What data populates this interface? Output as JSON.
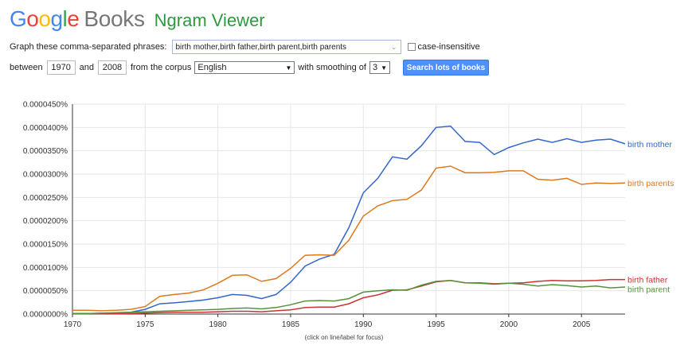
{
  "logo": {
    "letters": [
      {
        "ch": "G",
        "color": "#4285F4"
      },
      {
        "ch": "o",
        "color": "#EA4335"
      },
      {
        "ch": "o",
        "color": "#FBBC05"
      },
      {
        "ch": "g",
        "color": "#4285F4"
      },
      {
        "ch": "l",
        "color": "#34A853"
      },
      {
        "ch": "e",
        "color": "#EA4335"
      }
    ],
    "books": "Books",
    "product": "Ngram Viewer"
  },
  "form": {
    "phrases_label": "Graph these comma-separated phrases:",
    "phrases_value": "birth mother,birth father,birth parent,birth parents",
    "case_label": "case-insensitive",
    "between_label": "between",
    "start_year": "1970",
    "and_label": "and",
    "end_year": "2008",
    "corpus_label": "from the corpus",
    "corpus_value": "English",
    "smoothing_label": "with smoothing of",
    "smoothing_value": "3",
    "search_button": "Search lots of books"
  },
  "chart_data": {
    "type": "line",
    "xlim": [
      1970,
      2008
    ],
    "ylim": [
      0,
      4.5e-07
    ],
    "x_ticks": [
      1970,
      1975,
      1980,
      1985,
      1990,
      1995,
      2000,
      2005
    ],
    "y_ticks": [
      0,
      5e-08,
      1e-07,
      1.5e-07,
      2e-07,
      2.5e-07,
      3e-07,
      3.5e-07,
      4e-07,
      4.5e-07
    ],
    "y_tick_labels": [
      "0.0000000%",
      "0.0000050%",
      "0.0000100%",
      "0.0000150%",
      "0.0000200%",
      "0.0000250%",
      "0.0000300%",
      "0.0000350%",
      "0.0000400%",
      "0.0000450%"
    ],
    "x": [
      1970,
      1971,
      1972,
      1973,
      1974,
      1975,
      1976,
      1977,
      1978,
      1979,
      1980,
      1981,
      1982,
      1983,
      1984,
      1985,
      1986,
      1987,
      1988,
      1989,
      1990,
      1991,
      1992,
      1993,
      1994,
      1995,
      1996,
      1997,
      1998,
      1999,
      2000,
      2001,
      2002,
      2003,
      2004,
      2005,
      2006,
      2007,
      2008
    ],
    "series": [
      {
        "name": "birth mother",
        "color": "#3366cc",
        "values": [
          1e-09,
          1e-09,
          1e-09,
          2e-09,
          4e-09,
          1e-08,
          2.2e-08,
          2.4e-08,
          2.7e-08,
          3e-08,
          3.5e-08,
          4.2e-08,
          4e-08,
          3.3e-08,
          4.2e-08,
          6.8e-08,
          1.03e-07,
          1.18e-07,
          1.28e-07,
          1.85e-07,
          2.6e-07,
          2.91e-07,
          3.37e-07,
          3.32e-07,
          3.61e-07,
          4e-07,
          4.03e-07,
          3.7e-07,
          3.68e-07,
          3.42e-07,
          3.57e-07,
          3.67e-07,
          3.75e-07,
          3.68e-07,
          3.76e-07,
          3.68e-07,
          3.73e-07,
          3.75e-07,
          3.65e-07
        ]
      },
      {
        "name": "birth parents",
        "color": "#dc7a1e",
        "values": [
          8e-09,
          8e-09,
          7e-09,
          8e-09,
          1e-08,
          1.6e-08,
          3.8e-08,
          4.2e-08,
          4.5e-08,
          5.2e-08,
          6.6e-08,
          8.3e-08,
          8.4e-08,
          7e-08,
          7.6e-08,
          9.8e-08,
          1.26e-07,
          1.27e-07,
          1.26e-07,
          1.58e-07,
          2.1e-07,
          2.32e-07,
          2.43e-07,
          2.46e-07,
          2.66e-07,
          3.13e-07,
          3.17e-07,
          3.03e-07,
          3.03e-07,
          3.04e-07,
          3.07e-07,
          3.07e-07,
          2.89e-07,
          2.87e-07,
          2.91e-07,
          2.78e-07,
          2.81e-07,
          2.8e-07,
          2.81e-07
        ]
      },
      {
        "name": "birth father",
        "color": "#cc3333",
        "values": [
          1e-09,
          1e-09,
          1e-09,
          1e-09,
          1e-09,
          2e-09,
          3e-09,
          4e-09,
          4e-09,
          4e-09,
          5e-09,
          6e-09,
          6e-09,
          5e-09,
          7e-09,
          9e-09,
          1.4e-08,
          1.5e-08,
          1.5e-08,
          2.2e-08,
          3.5e-08,
          4.1e-08,
          5.1e-08,
          5.2e-08,
          6e-08,
          6.9e-08,
          7.2e-08,
          6.7e-08,
          6.7e-08,
          6.5e-08,
          6.6e-08,
          6.7e-08,
          7e-08,
          7.2e-08,
          7.1e-08,
          7.1e-08,
          7.2e-08,
          7.4e-08,
          7.4e-08
        ]
      },
      {
        "name": "birth parent",
        "color": "#56923c",
        "values": [
          1e-09,
          1e-09,
          2e-09,
          3e-09,
          4e-09,
          5e-09,
          6e-09,
          7e-09,
          8e-09,
          9e-09,
          1e-08,
          1.2e-08,
          1.3e-08,
          1.1e-08,
          1.4e-08,
          2e-08,
          2.8e-08,
          2.9e-08,
          2.8e-08,
          3.3e-08,
          4.7e-08,
          5e-08,
          5.2e-08,
          5.1e-08,
          6.2e-08,
          7e-08,
          7.2e-08,
          6.7e-08,
          6.6e-08,
          6.4e-08,
          6.6e-08,
          6.4e-08,
          6e-08,
          6.3e-08,
          6.1e-08,
          5.8e-08,
          6e-08,
          5.6e-08,
          5.8e-08
        ]
      }
    ],
    "footnote": "(click on line/label for focus)"
  }
}
